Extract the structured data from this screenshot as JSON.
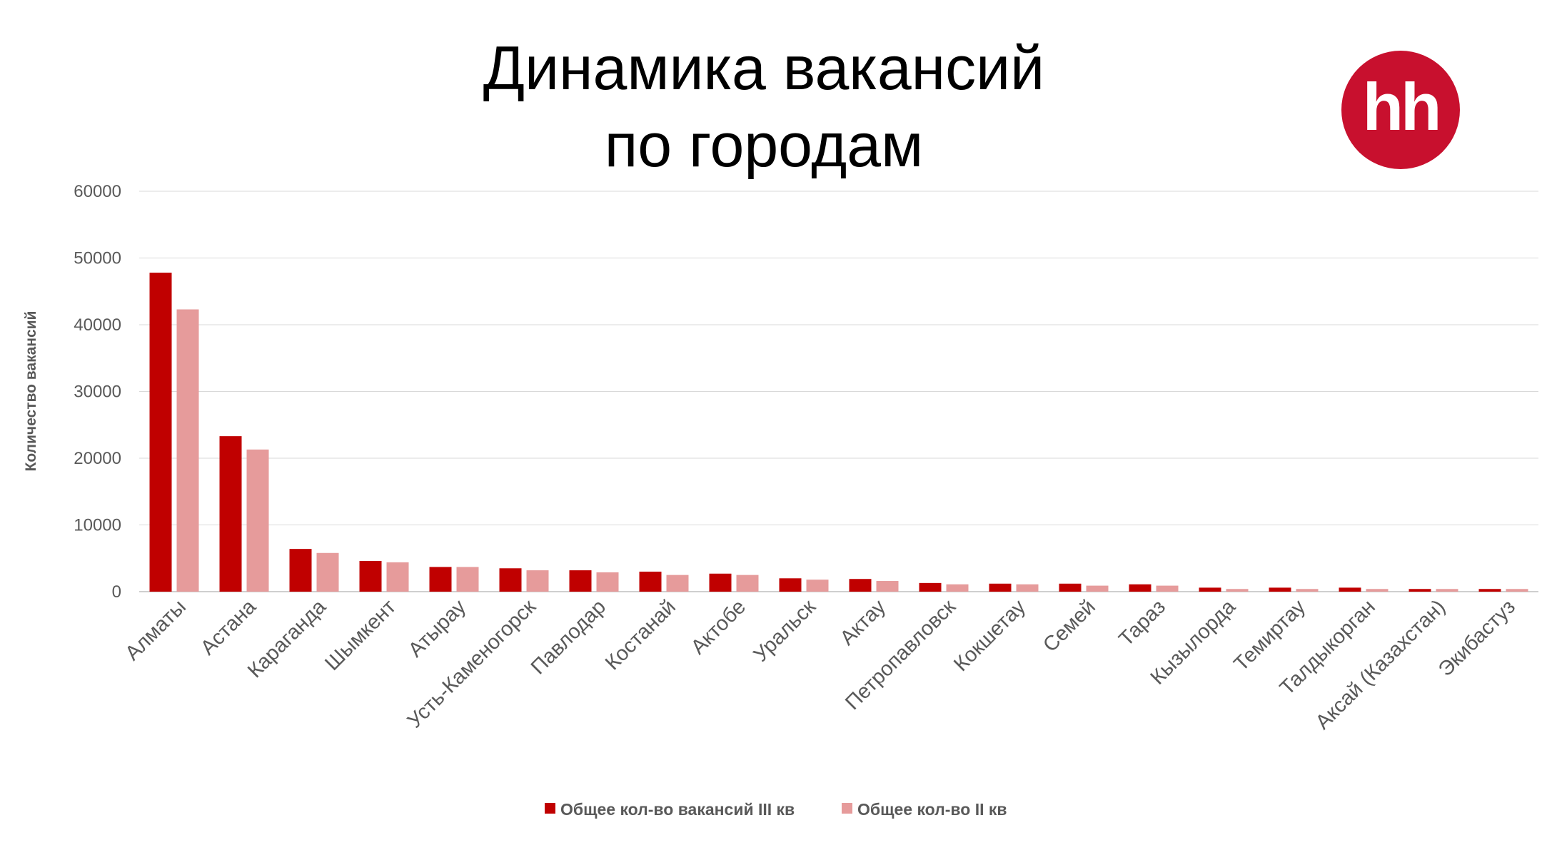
{
  "title_line1": "Динамика вакансий",
  "title_line2": "по городам",
  "logo_text": "hh",
  "colors": {
    "series_q3": "#c00000",
    "series_q2": "#e69b9b",
    "grid": "#d9d9d9",
    "axis_text": "#595959",
    "logo_bg": "#c8102e"
  },
  "chart_data": {
    "type": "bar",
    "title": "Динамика вакансий по городам",
    "xlabel": "",
    "ylabel": "Количество вакансий",
    "ylim": [
      0,
      60000
    ],
    "yticks": [
      0,
      10000,
      20000,
      30000,
      40000,
      50000,
      60000
    ],
    "grid": true,
    "legend_position": "bottom",
    "categories": [
      "Алматы",
      "Астана",
      "Караганда",
      "Шымкент",
      "Атырау",
      "Усть-Каменогорск",
      "Павлодар",
      "Костанай",
      "Актобе",
      "Уральск",
      "Актау",
      "Петропавловск",
      "Кокшетау",
      "Семей",
      "Тараз",
      "Кызылорда",
      "Темиртау",
      "Талдыкорган",
      "Аксай (Казахстан)",
      "Экибастуз"
    ],
    "series": [
      {
        "name": "Общее кол-во вакансий III кв",
        "color": "#c00000",
        "values": [
          47800,
          23300,
          6400,
          4600,
          3700,
          3500,
          3200,
          3000,
          2700,
          2000,
          1900,
          1300,
          1200,
          1200,
          1100,
          600,
          600,
          600,
          400,
          400
        ]
      },
      {
        "name": "Общее кол-во II кв",
        "color": "#e69b9b",
        "values": [
          42300,
          21300,
          5800,
          4400,
          3700,
          3200,
          2900,
          2500,
          2500,
          1800,
          1600,
          1100,
          1100,
          900,
          900,
          400,
          400,
          400,
          400,
          400
        ]
      }
    ]
  }
}
